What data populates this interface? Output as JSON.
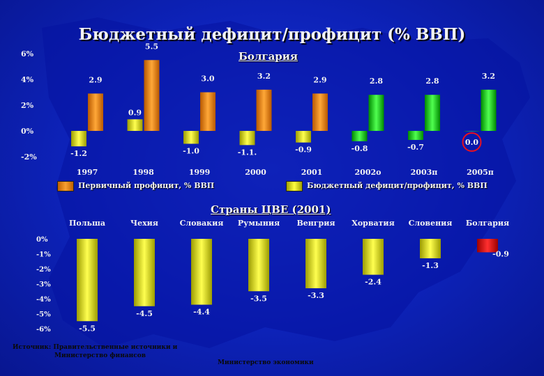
{
  "title": "Бюджетный дефицит/профицит (% ВВП)",
  "colors": {
    "orange": "#f08c1c",
    "yellow": "#e8e800",
    "green": "#18d818",
    "red": "#e81010",
    "text": "#f2f2f2",
    "highlight_circle": "#e81020"
  },
  "chart_data": [
    {
      "type": "bar",
      "title": "Болгария",
      "categories": [
        "1997",
        "1998",
        "1999",
        "2000",
        "2001",
        "2002о",
        "2003п",
        "2005п"
      ],
      "ylim": [
        -2,
        6
      ],
      "yticks": [
        "6%",
        "4%",
        "2%",
        "0%",
        "-2%"
      ],
      "series": [
        {
          "name": "Первичный профицит, % ВВП",
          "values": [
            2.9,
            5.5,
            3.0,
            3.2,
            2.9,
            2.8,
            2.8,
            3.2
          ],
          "labels": [
            "2.9",
            "5.5",
            "3.0",
            "3.2",
            "2.9",
            "2.8",
            "2.8",
            "3.2"
          ]
        },
        {
          "name": "Бюджетный дефицит/профицит, % ВВП",
          "values": [
            -1.2,
            0.9,
            -1.0,
            -1.1,
            -0.9,
            -0.8,
            -0.7,
            0.0
          ],
          "labels": [
            "-1.2",
            "0.9",
            "-1.0",
            "-1.1.",
            "-0.9",
            "-0.8",
            "-0.7",
            "0.0"
          ]
        }
      ],
      "circled_label": "0.0"
    },
    {
      "type": "bar",
      "title": "Страны ЦВЕ (2001)",
      "categories": [
        "Польша",
        "Чехия",
        "Словакия",
        "Румыния",
        "Венгрия",
        "Хорватия",
        "Словения",
        "Болгария"
      ],
      "ylim": [
        -6,
        0
      ],
      "yticks": [
        "0%",
        "-1%",
        "-2%",
        "-3%",
        "-4%",
        "-5%",
        "-6%"
      ],
      "values": [
        -5.5,
        -4.5,
        -4.4,
        -3.5,
        -3.3,
        -2.4,
        -1.3,
        -0.9
      ],
      "labels": [
        "-5.5",
        "-4.5",
        "-4.4",
        "-3.5",
        "-3.3",
        "-2.4",
        "-1.3",
        "-0.9"
      ]
    }
  ],
  "footer": {
    "source_line1": "Источник: Правительственные источники и",
    "source_line2": "Министерство финансов",
    "ministry": "Министерство экономики"
  }
}
